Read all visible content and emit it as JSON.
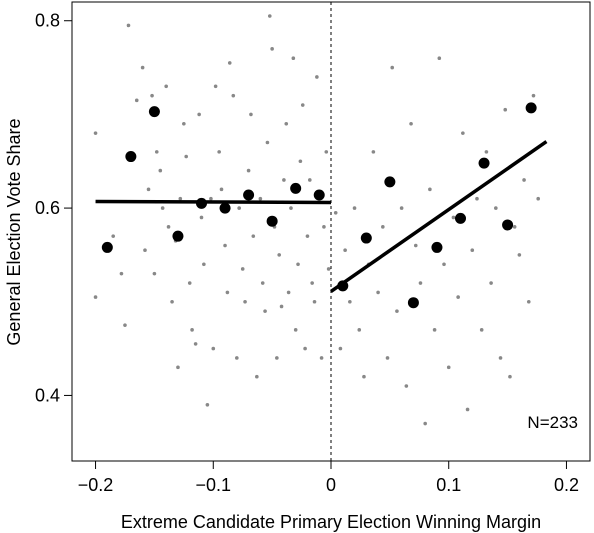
{
  "chart_data": {
    "type": "scatter",
    "title": "",
    "xlabel": "Extreme Candidate Primary Election Winning Margin",
    "ylabel": "General Election Vote Share",
    "xlim": [
      -0.22,
      0.22
    ],
    "ylim": [
      0.33,
      0.82
    ],
    "x_ticks": [
      -0.2,
      -0.1,
      0,
      0.1,
      0.2
    ],
    "x_tick_labels": [
      "−0.2",
      "−0.1",
      "0",
      "0.1",
      "0.2"
    ],
    "y_ticks": [
      0.4,
      0.6,
      0.8
    ],
    "y_tick_labels": [
      "0.4",
      "0.6",
      "0.8"
    ],
    "grid": false,
    "legend": "none",
    "annotation": "N=233",
    "cutoff_x": 0,
    "colors": {
      "raw_points": "#888888",
      "binned_means": "#000000",
      "fit_lines": "#000000"
    },
    "series": [
      {
        "kind": "raw",
        "points": [
          [
            -0.2,
            0.68
          ],
          [
            -0.2,
            0.505
          ],
          [
            -0.185,
            0.57
          ],
          [
            -0.178,
            0.53
          ],
          [
            -0.175,
            0.475
          ],
          [
            -0.172,
            0.795
          ],
          [
            -0.165,
            0.715
          ],
          [
            -0.16,
            0.75
          ],
          [
            -0.158,
            0.555
          ],
          [
            -0.155,
            0.62
          ],
          [
            -0.152,
            0.72
          ],
          [
            -0.15,
            0.53
          ],
          [
            -0.148,
            0.66
          ],
          [
            -0.145,
            0.64
          ],
          [
            -0.143,
            0.6
          ],
          [
            -0.14,
            0.73
          ],
          [
            -0.138,
            0.58
          ],
          [
            -0.135,
            0.5
          ],
          [
            -0.132,
            0.565
          ],
          [
            -0.13,
            0.43
          ],
          [
            -0.128,
            0.61
          ],
          [
            -0.125,
            0.69
          ],
          [
            -0.123,
            0.655
          ],
          [
            -0.12,
            0.52
          ],
          [
            -0.118,
            0.47
          ],
          [
            -0.115,
            0.455
          ],
          [
            -0.112,
            0.7
          ],
          [
            -0.11,
            0.59
          ],
          [
            -0.108,
            0.54
          ],
          [
            -0.105,
            0.39
          ],
          [
            -0.102,
            0.61
          ],
          [
            -0.1,
            0.45
          ],
          [
            -0.098,
            0.73
          ],
          [
            -0.095,
            0.66
          ],
          [
            -0.093,
            0.62
          ],
          [
            -0.09,
            0.56
          ],
          [
            -0.088,
            0.51
          ],
          [
            -0.086,
            0.755
          ],
          [
            -0.083,
            0.72
          ],
          [
            -0.08,
            0.44
          ],
          [
            -0.078,
            0.6
          ],
          [
            -0.075,
            0.535
          ],
          [
            -0.073,
            0.5
          ],
          [
            -0.07,
            0.64
          ],
          [
            -0.068,
            0.7
          ],
          [
            -0.066,
            0.57
          ],
          [
            -0.063,
            0.42
          ],
          [
            -0.06,
            0.61
          ],
          [
            -0.058,
            0.52
          ],
          [
            -0.056,
            0.49
          ],
          [
            -0.054,
            0.67
          ],
          [
            -0.052,
            0.805
          ],
          [
            -0.05,
            0.77
          ],
          [
            -0.048,
            0.58
          ],
          [
            -0.046,
            0.44
          ],
          [
            -0.044,
            0.55
          ],
          [
            -0.042,
            0.495
          ],
          [
            -0.04,
            0.63
          ],
          [
            -0.038,
            0.69
          ],
          [
            -0.036,
            0.51
          ],
          [
            -0.034,
            0.6
          ],
          [
            -0.032,
            0.76
          ],
          [
            -0.03,
            0.47
          ],
          [
            -0.028,
            0.54
          ],
          [
            -0.026,
            0.65
          ],
          [
            -0.024,
            0.71
          ],
          [
            -0.022,
            0.45
          ],
          [
            -0.02,
            0.57
          ],
          [
            -0.018,
            0.63
          ],
          [
            -0.016,
            0.52
          ],
          [
            -0.014,
            0.5
          ],
          [
            -0.012,
            0.74
          ],
          [
            -0.01,
            0.61
          ],
          [
            -0.008,
            0.44
          ],
          [
            -0.006,
            0.58
          ],
          [
            -0.004,
            0.66
          ],
          [
            -0.002,
            0.535
          ],
          [
            0.004,
            0.595
          ],
          [
            0.008,
            0.45
          ],
          [
            0.012,
            0.555
          ],
          [
            0.016,
            0.5
          ],
          [
            0.02,
            0.6
          ],
          [
            0.024,
            0.47
          ],
          [
            0.028,
            0.42
          ],
          [
            0.032,
            0.54
          ],
          [
            0.036,
            0.66
          ],
          [
            0.04,
            0.51
          ],
          [
            0.044,
            0.58
          ],
          [
            0.048,
            0.44
          ],
          [
            0.052,
            0.75
          ],
          [
            0.056,
            0.49
          ],
          [
            0.06,
            0.6
          ],
          [
            0.064,
            0.41
          ],
          [
            0.068,
            0.69
          ],
          [
            0.072,
            0.56
          ],
          [
            0.076,
            0.52
          ],
          [
            0.08,
            0.37
          ],
          [
            0.084,
            0.62
          ],
          [
            0.088,
            0.47
          ],
          [
            0.092,
            0.76
          ],
          [
            0.096,
            0.54
          ],
          [
            0.1,
            0.43
          ],
          [
            0.104,
            0.59
          ],
          [
            0.108,
            0.505
          ],
          [
            0.112,
            0.68
          ],
          [
            0.116,
            0.385
          ],
          [
            0.12,
            0.555
          ],
          [
            0.124,
            0.61
          ],
          [
            0.128,
            0.47
          ],
          [
            0.132,
            0.66
          ],
          [
            0.136,
            0.52
          ],
          [
            0.14,
            0.6
          ],
          [
            0.144,
            0.44
          ],
          [
            0.148,
            0.705
          ],
          [
            0.152,
            0.42
          ],
          [
            0.156,
            0.58
          ],
          [
            0.16,
            0.55
          ],
          [
            0.164,
            0.63
          ],
          [
            0.168,
            0.5
          ],
          [
            0.172,
            0.72
          ],
          [
            0.176,
            0.61
          ]
        ]
      },
      {
        "kind": "bin_means",
        "points": [
          [
            -0.19,
            0.558
          ],
          [
            -0.17,
            0.655
          ],
          [
            -0.15,
            0.703
          ],
          [
            -0.13,
            0.57
          ],
          [
            -0.11,
            0.605
          ],
          [
            -0.09,
            0.6
          ],
          [
            -0.07,
            0.614
          ],
          [
            -0.05,
            0.586
          ],
          [
            -0.03,
            0.621
          ],
          [
            -0.01,
            0.614
          ],
          [
            0.01,
            0.517
          ],
          [
            0.03,
            0.568
          ],
          [
            0.05,
            0.628
          ],
          [
            0.07,
            0.499
          ],
          [
            0.09,
            0.558
          ],
          [
            0.11,
            0.589
          ],
          [
            0.13,
            0.648
          ],
          [
            0.15,
            0.582
          ],
          [
            0.17,
            0.707
          ]
        ]
      },
      {
        "kind": "fit_left",
        "points": [
          [
            -0.2,
            0.607
          ],
          [
            0,
            0.606
          ]
        ]
      },
      {
        "kind": "fit_right",
        "points": [
          [
            0,
            0.511
          ],
          [
            0.183,
            0.671
          ]
        ]
      }
    ]
  }
}
